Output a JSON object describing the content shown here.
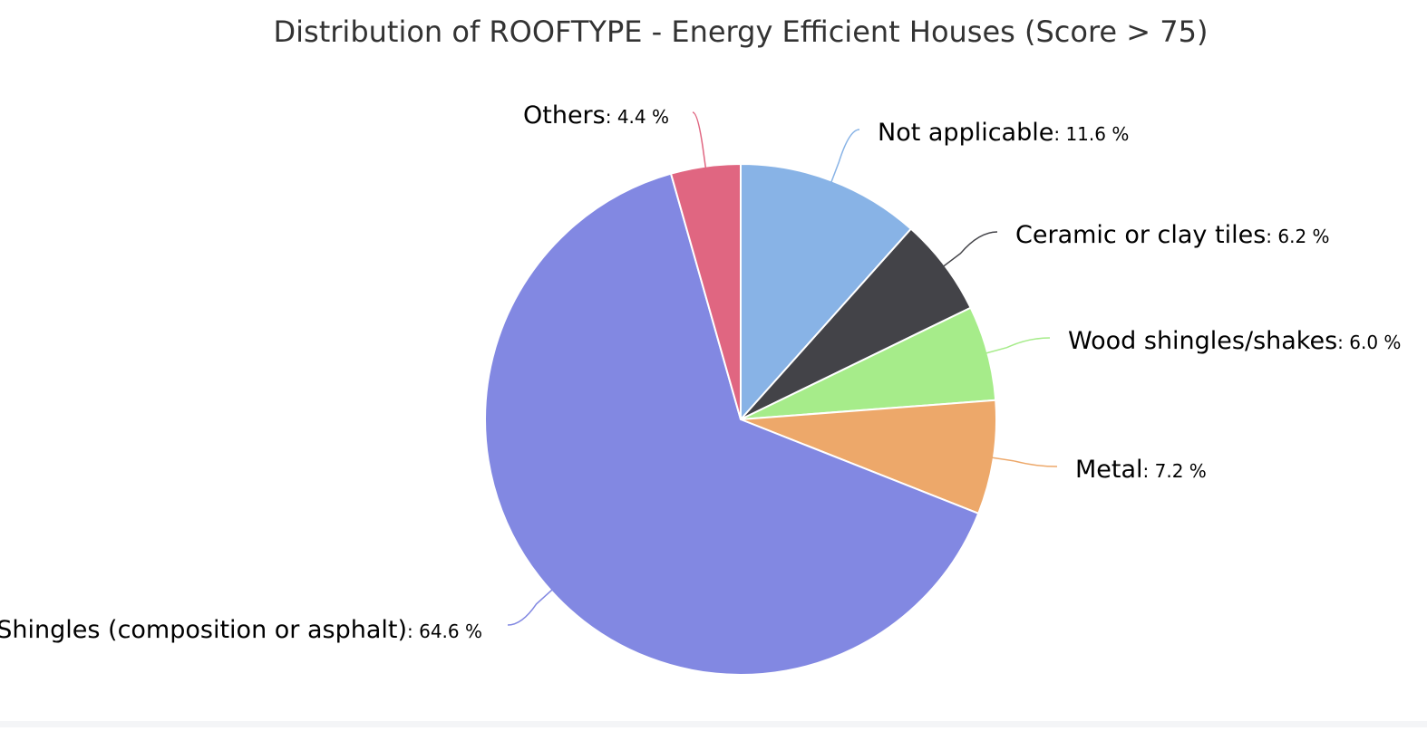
{
  "chart_data": {
    "type": "pie",
    "title": "Distribution of ROOFTYPE - Energy Efficient Houses (Score > 75)",
    "slices": [
      {
        "name": "Not applicable",
        "value": 11.6,
        "label": "11.6 %",
        "color": "#88b3e6"
      },
      {
        "name": "Ceramic or clay tiles",
        "value": 6.2,
        "label": "6.2 %",
        "color": "#434348"
      },
      {
        "name": "Wood shingles/shakes",
        "value": 6.0,
        "label": "6.0 %",
        "color": "#a6ec8a"
      },
      {
        "name": "Metal",
        "value": 7.2,
        "label": "7.2 %",
        "color": "#eda86a"
      },
      {
        "name": "Shingles (composition or asphalt)",
        "value": 64.6,
        "label": "64.6 %",
        "color": "#8288e2"
      },
      {
        "name": "Others",
        "value": 4.4,
        "label": "4.4 %",
        "color": "#e06681"
      }
    ],
    "start_angle_deg": 0,
    "direction": "clockwise",
    "legend": "none",
    "data_labels": "outside with connector lines"
  }
}
